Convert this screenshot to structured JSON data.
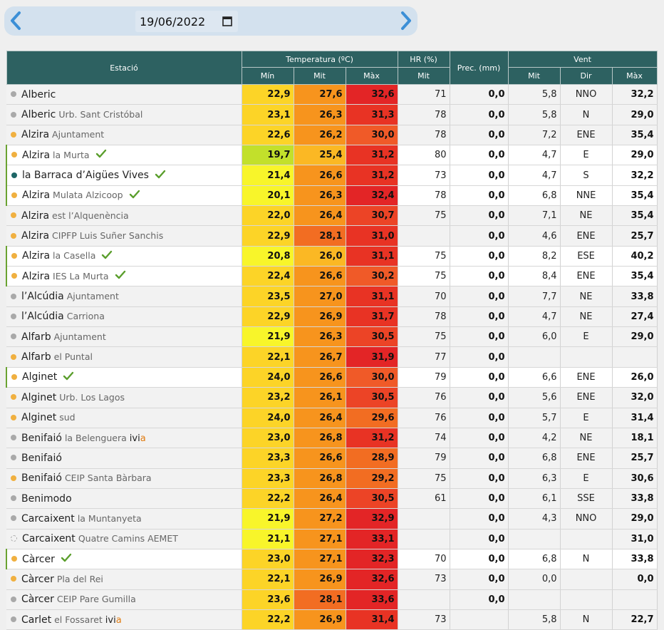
{
  "toolbar": {
    "date_value": "19/06/2022",
    "prev_icon": "chevron-left-icon",
    "next_icon": "chevron-right-icon",
    "calendar_icon": "calendar-icon"
  },
  "header": {
    "station": "Estació",
    "temperature": "Temperatura (ºC)",
    "hr": "HR (%)",
    "prec": "Prec. (mm)",
    "wind": "Vent",
    "t_min": "Mín",
    "t_avg": "Mit",
    "t_max": "Màx",
    "hr_avg": "Mit",
    "w_avg": "Mit",
    "w_dir": "Dir",
    "w_max": "Màx"
  },
  "colors": {
    "header_bg": "#2d6161",
    "dot_grey": "#a9a9a9",
    "dot_orange": "#f0b040",
    "dot_teal": "#1e6666",
    "check": "#5a9e2c"
  },
  "rows": [
    {
      "name": "Alberic",
      "sub": "",
      "dot": "grey",
      "check": false,
      "hl": false,
      "tmin": "22,9",
      "tmin_c": "#fcd427",
      "tavg": "27,6",
      "tavg_c": "#f7941d",
      "tmax": "32,6",
      "tmax_c": "#e32526",
      "hr": "71",
      "prec": "0,0",
      "wavg": "5,8",
      "wdir": "NNO",
      "wmax": "32,2"
    },
    {
      "name": "Alberic",
      "sub": "Urb. Sant Cristóbal",
      "dot": "grey",
      "check": false,
      "hl": false,
      "tmin": "23,1",
      "tmin_c": "#fcd427",
      "tavg": "26,3",
      "tavg_c": "#f7941d",
      "tmax": "31,3",
      "tmax_c": "#e83324",
      "hr": "78",
      "prec": "0,0",
      "wavg": "5,8",
      "wdir": "N",
      "wmax": "29,0"
    },
    {
      "name": "Alzira",
      "sub": "Ajuntament",
      "dot": "orange",
      "check": false,
      "hl": false,
      "tmin": "22,6",
      "tmin_c": "#fcd427",
      "tavg": "26,2",
      "tavg_c": "#f7941d",
      "tmax": "30,0",
      "tmax_c": "#f05a28",
      "hr": "78",
      "prec": "0,0",
      "wavg": "7,2",
      "wdir": "ENE",
      "wmax": "35,4"
    },
    {
      "name": "Alzira",
      "sub": "la Murta",
      "dot": "orange",
      "check": true,
      "hl": true,
      "tmin": "19,7",
      "tmin_c": "#c2e02b",
      "tavg": "25,4",
      "tavg_c": "#fbb824",
      "tmax": "31,2",
      "tmax_c": "#e83324",
      "hr": "80",
      "prec": "0,0",
      "wavg": "4,7",
      "wdir": "E",
      "wmax": "29,0"
    },
    {
      "name": "la Barraca d’Aigües Vives",
      "sub": "",
      "dot": "teal",
      "check": true,
      "hl": true,
      "tmin": "21,4",
      "tmin_c": "#f8f52a",
      "tavg": "26,6",
      "tavg_c": "#f7941d",
      "tmax": "31,2",
      "tmax_c": "#e83324",
      "hr": "73",
      "prec": "0,0",
      "wavg": "4,7",
      "wdir": "S",
      "wmax": "32,2"
    },
    {
      "name": "Alzira",
      "sub": "Mulata Alzicoop",
      "dot": "orange",
      "check": true,
      "hl": true,
      "tmin": "20,1",
      "tmin_c": "#f8f52a",
      "tavg": "26,3",
      "tavg_c": "#f7941d",
      "tmax": "32,4",
      "tmax_c": "#e32526",
      "hr": "78",
      "prec": "0,0",
      "wavg": "6,8",
      "wdir": "NNE",
      "wmax": "35,4"
    },
    {
      "name": "Alzira",
      "sub": "est l’Alquenència",
      "dot": "orange",
      "check": false,
      "hl": false,
      "tmin": "22,0",
      "tmin_c": "#fcd427",
      "tavg": "26,4",
      "tavg_c": "#f7941d",
      "tmax": "30,7",
      "tmax_c": "#ec4426",
      "hr": "75",
      "prec": "0,0",
      "wavg": "7,1",
      "wdir": "NE",
      "wmax": "35,4"
    },
    {
      "name": "Alzira",
      "sub": "CIPFP Luis Suñer Sanchis",
      "dot": "orange",
      "check": false,
      "hl": false,
      "tmin": "22,9",
      "tmin_c": "#fcd427",
      "tavg": "28,1",
      "tavg_c": "#f26d22",
      "tmax": "31,0",
      "tmax_c": "#e83324",
      "hr": "",
      "prec": "0,0",
      "wavg": "4,6",
      "wdir": "ENE",
      "wmax": "25,7"
    },
    {
      "name": "Alzira",
      "sub": "la Casella",
      "dot": "orange",
      "check": true,
      "hl": true,
      "tmin": "20,8",
      "tmin_c": "#f8f52a",
      "tavg": "26,0",
      "tavg_c": "#fbb824",
      "tmax": "31,1",
      "tmax_c": "#e83324",
      "hr": "75",
      "prec": "0,0",
      "wavg": "8,2",
      "wdir": "ESE",
      "wmax": "40,2"
    },
    {
      "name": "Alzira",
      "sub": "IES La Murta",
      "dot": "orange",
      "check": true,
      "hl": true,
      "tmin": "22,4",
      "tmin_c": "#fcd427",
      "tavg": "26,6",
      "tavg_c": "#f7941d",
      "tmax": "30,2",
      "tmax_c": "#f05a28",
      "hr": "75",
      "prec": "0,0",
      "wavg": "8,4",
      "wdir": "ENE",
      "wmax": "35,4"
    },
    {
      "name": "l’Alcúdia",
      "sub": "Ajuntament",
      "dot": "grey",
      "check": false,
      "hl": false,
      "tmin": "23,5",
      "tmin_c": "#fcd427",
      "tavg": "27,0",
      "tavg_c": "#f7941d",
      "tmax": "31,1",
      "tmax_c": "#e83324",
      "hr": "70",
      "prec": "0,0",
      "wavg": "7,7",
      "wdir": "NE",
      "wmax": "33,8"
    },
    {
      "name": "l’Alcúdia",
      "sub": "Carriona",
      "dot": "grey",
      "check": false,
      "hl": false,
      "tmin": "22,9",
      "tmin_c": "#fcd427",
      "tavg": "26,9",
      "tavg_c": "#f7941d",
      "tmax": "31,7",
      "tmax_c": "#e83324",
      "hr": "78",
      "prec": "0,0",
      "wavg": "4,7",
      "wdir": "NE",
      "wmax": "27,4"
    },
    {
      "name": "Alfarb",
      "sub": "Ajuntament",
      "dot": "grey",
      "check": false,
      "hl": false,
      "tmin": "21,9",
      "tmin_c": "#f8f52a",
      "tavg": "26,3",
      "tavg_c": "#f7941d",
      "tmax": "30,5",
      "tmax_c": "#ec4426",
      "hr": "75",
      "prec": "0,0",
      "wavg": "6,0",
      "wdir": "E",
      "wmax": "29,0"
    },
    {
      "name": "Alfarb",
      "sub": "el Puntal",
      "dot": "orange",
      "check": false,
      "hl": false,
      "tmin": "22,1",
      "tmin_c": "#fcd427",
      "tavg": "26,7",
      "tavg_c": "#f7941d",
      "tmax": "31,9",
      "tmax_c": "#e32526",
      "hr": "77",
      "prec": "0,0",
      "wavg": "",
      "wdir": "",
      "wmax": ""
    },
    {
      "name": "Alginet",
      "sub": "",
      "dot": "orange",
      "check": true,
      "hl": true,
      "tmin": "24,0",
      "tmin_c": "#fcd427",
      "tavg": "26,6",
      "tavg_c": "#f7941d",
      "tmax": "30,0",
      "tmax_c": "#f05a28",
      "hr": "79",
      "prec": "0,0",
      "wavg": "6,6",
      "wdir": "ENE",
      "wmax": "26,0"
    },
    {
      "name": "Alginet",
      "sub": "Urb. Los Lagos",
      "dot": "orange",
      "check": false,
      "hl": false,
      "tmin": "23,2",
      "tmin_c": "#fcd427",
      "tavg": "26,1",
      "tavg_c": "#f7941d",
      "tmax": "30,5",
      "tmax_c": "#ec4426",
      "hr": "76",
      "prec": "0,0",
      "wavg": "5,6",
      "wdir": "ENE",
      "wmax": "32,0"
    },
    {
      "name": "Alginet",
      "sub": "sud",
      "dot": "orange",
      "check": false,
      "hl": false,
      "tmin": "24,0",
      "tmin_c": "#fcd427",
      "tavg": "26,4",
      "tavg_c": "#f7941d",
      "tmax": "29,6",
      "tmax_c": "#f26d22",
      "hr": "76",
      "prec": "0,0",
      "wavg": "5,7",
      "wdir": "E",
      "wmax": "31,4"
    },
    {
      "name": "Benifaió",
      "sub": "la Belenguera",
      "ivia": true,
      "dot": "grey",
      "check": false,
      "hl": false,
      "tmin": "23,0",
      "tmin_c": "#fcd427",
      "tavg": "26,8",
      "tavg_c": "#f7941d",
      "tmax": "31,2",
      "tmax_c": "#e83324",
      "hr": "74",
      "prec": "0,0",
      "wavg": "4,2",
      "wdir": "NE",
      "wmax": "18,1"
    },
    {
      "name": "Benifaió",
      "sub": "",
      "dot": "grey",
      "check": false,
      "hl": false,
      "tmin": "23,3",
      "tmin_c": "#fcd427",
      "tavg": "26,6",
      "tavg_c": "#f7941d",
      "tmax": "28,9",
      "tmax_c": "#f26d22",
      "hr": "79",
      "prec": "0,0",
      "wavg": "6,8",
      "wdir": "ENE",
      "wmax": "25,7"
    },
    {
      "name": "Benifaió",
      "sub": "CEIP Santa Bàrbara",
      "dot": "orange",
      "check": false,
      "hl": false,
      "tmin": "23,3",
      "tmin_c": "#fcd427",
      "tavg": "26,8",
      "tavg_c": "#f7941d",
      "tmax": "29,2",
      "tmax_c": "#f26d22",
      "hr": "75",
      "prec": "0,0",
      "wavg": "6,3",
      "wdir": "E",
      "wmax": "30,6"
    },
    {
      "name": "Benimodo",
      "sub": "",
      "dot": "grey",
      "check": false,
      "hl": false,
      "tmin": "22,2",
      "tmin_c": "#fcd427",
      "tavg": "26,4",
      "tavg_c": "#f7941d",
      "tmax": "30,5",
      "tmax_c": "#ec4426",
      "hr": "61",
      "prec": "0,0",
      "wavg": "6,1",
      "wdir": "SSE",
      "wmax": "33,8"
    },
    {
      "name": "Carcaixent",
      "sub": "la Muntanyeta",
      "dot": "grey",
      "check": false,
      "hl": false,
      "tmin": "21,9",
      "tmin_c": "#f8f52a",
      "tavg": "27,2",
      "tavg_c": "#f7941d",
      "tmax": "32,9",
      "tmax_c": "#e32526",
      "hr": "",
      "prec": "0,0",
      "wavg": "4,3",
      "wdir": "NNO",
      "wmax": "29,0"
    },
    {
      "name": "Carcaixent",
      "sub": "Quatre Camins AEMET",
      "dot": "dashed",
      "check": false,
      "hl": false,
      "tmin": "21,1",
      "tmin_c": "#f8f52a",
      "tavg": "27,1",
      "tavg_c": "#f7941d",
      "tmax": "33,1",
      "tmax_c": "#e32526",
      "hr": "",
      "prec": "0,0",
      "wavg": "",
      "wdir": "",
      "wmax": "31,0"
    },
    {
      "name": "Càrcer",
      "sub": "",
      "dot": "orange",
      "check": true,
      "hl": true,
      "tmin": "23,0",
      "tmin_c": "#fcd427",
      "tavg": "27,1",
      "tavg_c": "#f7941d",
      "tmax": "32,3",
      "tmax_c": "#e32526",
      "hr": "70",
      "prec": "0,0",
      "wavg": "6,8",
      "wdir": "N",
      "wmax": "33,8"
    },
    {
      "name": "Càrcer",
      "sub": "Pla del Rei",
      "dot": "orange",
      "check": false,
      "hl": false,
      "tmin": "22,1",
      "tmin_c": "#fcd427",
      "tavg": "26,9",
      "tavg_c": "#f7941d",
      "tmax": "32,6",
      "tmax_c": "#e32526",
      "hr": "73",
      "prec": "0,0",
      "wavg": "0,0",
      "wdir": "",
      "wmax": "0,0"
    },
    {
      "name": "Càrcer",
      "sub": "CEIP Pare Gumilla",
      "dot": "grey",
      "check": false,
      "hl": false,
      "tmin": "23,6",
      "tmin_c": "#fcd427",
      "tavg": "28,1",
      "tavg_c": "#f26d22",
      "tmax": "33,6",
      "tmax_c": "#e32526",
      "hr": "",
      "prec": "0,0",
      "wavg": "",
      "wdir": "",
      "wmax": ""
    },
    {
      "name": "Carlet",
      "sub": "el Fossaret",
      "ivia": true,
      "dot": "grey",
      "check": false,
      "hl": false,
      "tmin": "22,2",
      "tmin_c": "#fcd427",
      "tavg": "26,9",
      "tavg_c": "#f7941d",
      "tmax": "31,4",
      "tmax_c": "#e83324",
      "hr": "73",
      "prec": "",
      "wavg": "5,8",
      "wdir": "N",
      "wmax": "22,7"
    }
  ]
}
